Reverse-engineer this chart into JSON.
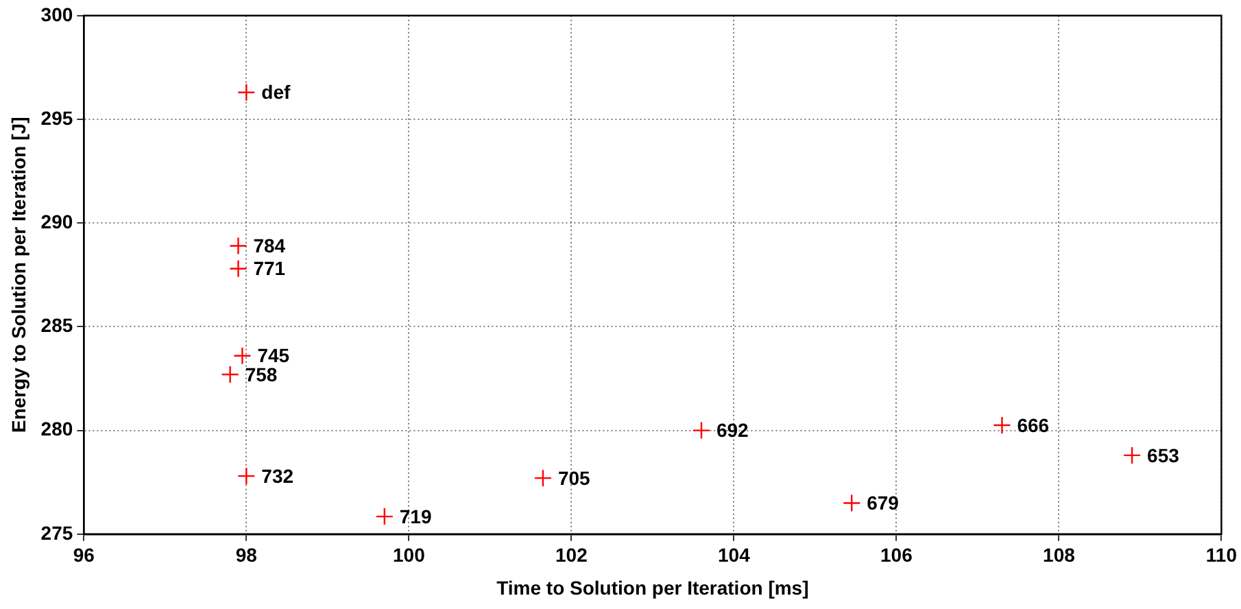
{
  "chart_data": {
    "type": "scatter",
    "xlabel": "Time to Solution per Iteration [ms]",
    "ylabel": "Energy to Solution per Iteration [J]",
    "x": [
      98.0,
      97.9,
      97.9,
      97.95,
      97.8,
      98.0,
      99.7,
      101.65,
      103.6,
      105.45,
      107.3,
      108.9
    ],
    "series": [
      {
        "color": "#ff0000",
        "values": [
          296.3,
          288.9,
          287.8,
          283.6,
          282.7,
          277.8,
          275.85,
          277.7,
          280.0,
          276.5,
          280.25,
          278.8
        ]
      }
    ],
    "annotations": [
      {
        "text": "def",
        "x": 98.0,
        "y": 296.3
      },
      {
        "text": "784",
        "x": 97.9,
        "y": 288.9
      },
      {
        "text": "771",
        "x": 97.9,
        "y": 287.8
      },
      {
        "text": "745",
        "x": 97.95,
        "y": 283.6
      },
      {
        "text": "758",
        "x": 97.8,
        "y": 282.7
      },
      {
        "text": "732",
        "x": 98.0,
        "y": 277.8
      },
      {
        "text": "719",
        "x": 99.7,
        "y": 275.85
      },
      {
        "text": "705",
        "x": 101.65,
        "y": 277.7
      },
      {
        "text": "692",
        "x": 103.6,
        "y": 280.0
      },
      {
        "text": "679",
        "x": 105.45,
        "y": 276.5
      },
      {
        "text": "666",
        "x": 107.3,
        "y": 280.25
      },
      {
        "text": "653",
        "x": 108.9,
        "y": 278.8
      }
    ],
    "xlim": [
      96,
      110
    ],
    "xticks": [
      96,
      98,
      100,
      102,
      104,
      106,
      108,
      110
    ],
    "ylim": [
      275,
      300
    ],
    "yticks": [
      275,
      280,
      285,
      290,
      295,
      300
    ],
    "grid": true,
    "legend": false,
    "marker": "cross"
  }
}
